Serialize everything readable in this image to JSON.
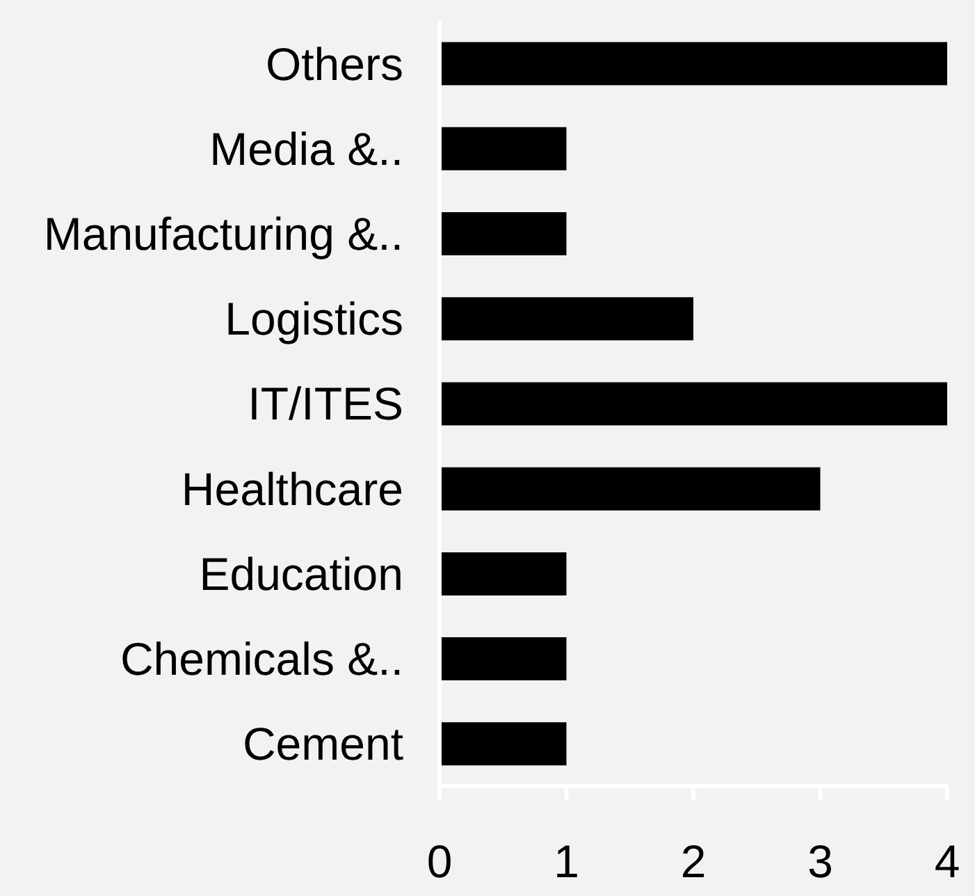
{
  "chart_data": {
    "type": "bar",
    "orientation": "horizontal",
    "categories": [
      "Others",
      "Media &..",
      "Manufacturing &..",
      "Logistics",
      "IT/ITES",
      "Healthcare",
      "Education",
      "Chemicals &..",
      "Cement"
    ],
    "values": [
      4,
      1,
      1,
      2,
      4,
      3,
      1,
      1,
      1
    ],
    "color": "#000000",
    "xlim": [
      0,
      4
    ],
    "xticks": [
      0,
      1,
      2,
      3,
      4
    ],
    "grid": false
  }
}
